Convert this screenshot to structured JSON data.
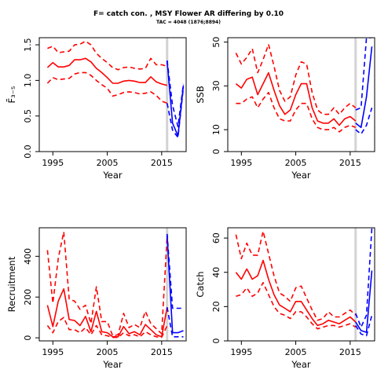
{
  "figure": {
    "title": "F= catch con. , MSY Flower AR differing by 0.10",
    "subtitle": "TAC = 4048 (1876;8894)"
  },
  "colors": {
    "historic": "#ff0000",
    "forecast": "#0000ff",
    "assessment_year_line": "#d3d3d3",
    "axes": "#000000"
  },
  "chart_data": [
    {
      "type": "line",
      "xlabel": "Year",
      "ylabel": "F̄₃₋₅",
      "xlim": [
        1992.5,
        2019.5
      ],
      "ylim": [
        0,
        1.6
      ],
      "xticks": [
        1995,
        2005,
        2015
      ],
      "yticks": [
        0.0,
        0.5,
        1.0,
        1.5
      ],
      "ytick_labels": [
        "0.0",
        "0.5",
        "1.0",
        "1.5"
      ],
      "vline": 2016,
      "series": [
        {
          "role": "historic",
          "style": "solid",
          "x": [
            1994,
            1995,
            1996,
            1997,
            1998,
            1999,
            2000,
            2001,
            2002,
            2003,
            2004,
            2005,
            2006,
            2007,
            2008,
            2009,
            2010,
            2011,
            2012,
            2013,
            2014,
            2015,
            2016
          ],
          "y": [
            1.18,
            1.25,
            1.19,
            1.19,
            1.21,
            1.29,
            1.29,
            1.31,
            1.26,
            1.17,
            1.11,
            1.04,
            0.96,
            0.96,
            0.99,
            1.0,
            0.99,
            0.97,
            0.97,
            1.05,
            0.98,
            0.95,
            0.93
          ]
        },
        {
          "role": "historic",
          "style": "dashed",
          "x": [
            1994,
            1995,
            1996,
            1997,
            1998,
            1999,
            2000,
            2001,
            2002,
            2003,
            2004,
            2005,
            2006,
            2007,
            2008,
            2009,
            2010,
            2011,
            2012,
            2013,
            2014,
            2015,
            2016
          ],
          "y": [
            1.45,
            1.48,
            1.39,
            1.4,
            1.41,
            1.5,
            1.51,
            1.55,
            1.5,
            1.38,
            1.31,
            1.25,
            1.18,
            1.15,
            1.18,
            1.19,
            1.17,
            1.16,
            1.17,
            1.31,
            1.22,
            1.22,
            1.2
          ]
        },
        {
          "role": "historic",
          "style": "dashed",
          "x": [
            1994,
            1995,
            1996,
            1997,
            1998,
            1999,
            2000,
            2001,
            2002,
            2003,
            2004,
            2005,
            2006,
            2007,
            2008,
            2009,
            2010,
            2011,
            2012,
            2013,
            2014,
            2015,
            2016
          ],
          "y": [
            0.96,
            1.04,
            1.01,
            1.02,
            1.03,
            1.09,
            1.11,
            1.11,
            1.07,
            1.0,
            0.94,
            0.89,
            0.78,
            0.8,
            0.83,
            0.84,
            0.83,
            0.81,
            0.82,
            0.84,
            0.79,
            0.71,
            0.68
          ]
        },
        {
          "role": "forecast",
          "style": "solid",
          "x": [
            2016,
            2017,
            2018,
            2019
          ],
          "y": [
            1.27,
            0.4,
            0.22,
            0.93
          ]
        },
        {
          "role": "forecast",
          "style": "dashed",
          "x": [
            2016,
            2017,
            2018,
            2019
          ],
          "y": [
            1.28,
            0.65,
            0.35,
            0.95
          ]
        },
        {
          "role": "forecast",
          "style": "dashed",
          "x": [
            2016,
            2017,
            2018,
            2019
          ],
          "y": [
            0.68,
            0.3,
            0.2,
            0.9
          ]
        }
      ]
    },
    {
      "type": "line",
      "xlabel": "Year",
      "ylabel": "SSB",
      "xlim": [
        1992.5,
        2019.5
      ],
      "ylim": [
        0,
        52
      ],
      "xticks": [
        1995,
        2005,
        2015
      ],
      "yticks": [
        0,
        10,
        30,
        50
      ],
      "ytick_labels": [
        "0",
        "10",
        "30",
        "50"
      ],
      "vline": 2016,
      "series": [
        {
          "role": "historic",
          "style": "solid",
          "x": [
            1994,
            1995,
            1996,
            1997,
            1998,
            1999,
            2000,
            2001,
            2002,
            2003,
            2004,
            2005,
            2006,
            2007,
            2008,
            2009,
            2010,
            2011,
            2012,
            2013,
            2014,
            2015,
            2016
          ],
          "y": [
            31,
            29,
            33,
            34,
            26,
            31,
            36,
            28,
            21,
            17,
            19,
            26,
            31,
            31,
            20,
            14,
            13,
            13,
            15,
            12,
            15,
            16,
            14
          ]
        },
        {
          "role": "historic",
          "style": "dashed",
          "x": [
            1994,
            1995,
            1996,
            1997,
            1998,
            1999,
            2000,
            2001,
            2002,
            2003,
            2004,
            2005,
            2006,
            2007,
            2008,
            2009,
            2010,
            2011,
            2012,
            2013,
            2014,
            2015,
            2016
          ],
          "y": [
            45,
            40,
            43,
            47,
            36,
            42,
            49,
            39,
            28,
            23,
            25,
            35,
            41,
            40,
            27,
            19,
            17,
            17,
            20,
            17,
            20,
            22,
            20
          ]
        },
        {
          "role": "historic",
          "style": "dashed",
          "x": [
            1994,
            1995,
            1996,
            1997,
            1998,
            1999,
            2000,
            2001,
            2002,
            2003,
            2004,
            2005,
            2006,
            2007,
            2008,
            2009,
            2010,
            2011,
            2012,
            2013,
            2014,
            2015,
            2016
          ],
          "y": [
            22,
            22,
            24,
            25,
            20,
            24,
            27,
            20,
            15,
            14,
            14,
            19,
            22,
            22,
            15,
            11,
            10,
            10,
            11,
            9,
            11,
            12,
            11
          ]
        },
        {
          "role": "forecast",
          "style": "solid",
          "x": [
            2016,
            2017,
            2018,
            2019
          ],
          "y": [
            13,
            11,
            25,
            48
          ]
        },
        {
          "role": "forecast",
          "style": "dashed",
          "x": [
            2016,
            2017,
            2018,
            2019
          ],
          "y": [
            19,
            20,
            52,
            52
          ]
        },
        {
          "role": "forecast",
          "style": "dashed",
          "x": [
            2016,
            2017,
            2018,
            2019
          ],
          "y": [
            10,
            8,
            12,
            20
          ]
        }
      ]
    },
    {
      "type": "line",
      "xlabel": "Year",
      "ylabel": "Recruitment",
      "xlim": [
        1992.5,
        2019.5
      ],
      "ylim": [
        -15,
        540
      ],
      "xticks": [
        1995,
        2005,
        2015
      ],
      "yticks": [
        0,
        200,
        400
      ],
      "ytick_labels": [
        "0",
        "200",
        "400"
      ],
      "vline": 2016,
      "series": [
        {
          "role": "historic",
          "style": "solid",
          "x": [
            1994,
            1995,
            1996,
            1997,
            1998,
            1999,
            2000,
            2001,
            2002,
            2003,
            2004,
            2005,
            2006,
            2007,
            2008,
            2009,
            2010,
            2011,
            2012,
            2013,
            2014,
            2015,
            2016
          ],
          "y": [
            160,
            55,
            180,
            240,
            90,
            85,
            60,
            105,
            30,
            130,
            30,
            25,
            5,
            5,
            55,
            20,
            30,
            15,
            65,
            40,
            15,
            5,
            150
          ]
        },
        {
          "role": "historic",
          "style": "dashed",
          "x": [
            1994,
            1995,
            1996,
            1997,
            1998,
            1999,
            2000,
            2001,
            2002,
            2003,
            2004,
            2005,
            2006,
            2007,
            2008,
            2009,
            2010,
            2011,
            2012,
            2013,
            2014,
            2015,
            2016
          ],
          "y": [
            430,
            170,
            390,
            520,
            190,
            180,
            140,
            160,
            70,
            250,
            80,
            80,
            10,
            15,
            120,
            50,
            65,
            50,
            130,
            70,
            45,
            20,
            500
          ]
        },
        {
          "role": "historic",
          "style": "dashed",
          "x": [
            1994,
            1995,
            1996,
            1997,
            1998,
            1999,
            2000,
            2001,
            2002,
            2003,
            2004,
            2005,
            2006,
            2007,
            2008,
            2009,
            2010,
            2011,
            2012,
            2013,
            2014,
            2015,
            2016
          ],
          "y": [
            60,
            25,
            80,
            100,
            40,
            40,
            25,
            50,
            15,
            60,
            15,
            10,
            2,
            2,
            25,
            10,
            15,
            5,
            30,
            15,
            5,
            2,
            60
          ]
        },
        {
          "role": "forecast",
          "style": "solid",
          "x": [
            2016,
            2017,
            2018,
            2019
          ],
          "y": [
            500,
            25,
            25,
            35
          ]
        },
        {
          "role": "forecast",
          "style": "dashed",
          "x": [
            2016,
            2017,
            2018,
            2019
          ],
          "y": [
            510,
            145,
            145,
            145
          ]
        },
        {
          "role": "forecast",
          "style": "dashed",
          "x": [
            2016,
            2017,
            2018,
            2019
          ],
          "y": [
            150,
            5,
            5,
            5
          ]
        }
      ]
    },
    {
      "type": "line",
      "xlabel": "Year",
      "ylabel": "Catch",
      "xlim": [
        1992.5,
        2019.5
      ],
      "ylim": [
        0,
        66
      ],
      "xticks": [
        1995,
        2005,
        2015
      ],
      "yticks": [
        0,
        20,
        40,
        60
      ],
      "ytick_labels": [
        "0",
        "20",
        "40",
        "60"
      ],
      "vline": 2016,
      "series": [
        {
          "role": "historic",
          "style": "solid",
          "x": [
            1994,
            1995,
            1996,
            1997,
            1998,
            1999,
            2000,
            2001,
            2002,
            2003,
            2004,
            2005,
            2006,
            2007,
            2008,
            2009,
            2010,
            2011,
            2012,
            2013,
            2014,
            2015,
            2016
          ],
          "y": [
            40,
            36,
            42,
            36,
            38,
            47,
            36,
            27,
            21,
            19,
            17,
            23,
            23,
            18,
            13,
            9,
            10,
            12,
            11,
            10,
            12,
            14,
            11
          ]
        },
        {
          "role": "historic",
          "style": "dashed",
          "x": [
            1994,
            1995,
            1996,
            1997,
            1998,
            1999,
            2000,
            2001,
            2002,
            2003,
            2004,
            2005,
            2006,
            2007,
            2008,
            2009,
            2010,
            2011,
            2012,
            2013,
            2014,
            2015,
            2016
          ],
          "y": [
            62,
            48,
            57,
            50,
            50,
            64,
            51,
            38,
            28,
            26,
            23,
            31,
            32,
            25,
            18,
            12,
            13,
            17,
            14,
            14,
            16,
            18,
            15
          ]
        },
        {
          "role": "historic",
          "style": "dashed",
          "x": [
            1994,
            1995,
            1996,
            1997,
            1998,
            1999,
            2000,
            2001,
            2002,
            2003,
            2004,
            2005,
            2006,
            2007,
            2008,
            2009,
            2010,
            2011,
            2012,
            2013,
            2014,
            2015,
            2016
          ],
          "y": [
            26,
            27,
            31,
            26,
            28,
            34,
            27,
            20,
            16,
            15,
            13,
            17,
            17,
            14,
            10,
            7,
            8,
            9,
            9,
            8,
            9,
            10,
            8
          ]
        },
        {
          "role": "forecast",
          "style": "solid",
          "x": [
            2016,
            2017,
            2018,
            2019
          ],
          "y": [
            11,
            6,
            5,
            41
          ]
        },
        {
          "role": "forecast",
          "style": "dashed",
          "x": [
            2016,
            2017,
            2018,
            2019
          ],
          "y": [
            16,
            8,
            15,
            66
          ]
        },
        {
          "role": "forecast",
          "style": "dashed",
          "x": [
            2016,
            2017,
            2018,
            2019
          ],
          "y": [
            9,
            4,
            3,
            15
          ]
        }
      ]
    }
  ]
}
